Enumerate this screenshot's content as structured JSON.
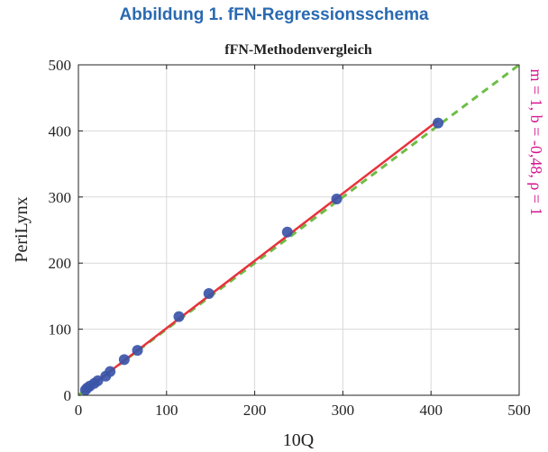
{
  "figure_title": "Abbildung 1. fFN-Regressionsschema",
  "colors": {
    "title": "#2a6ab1",
    "points": "#3b55a8",
    "fit_line": "#e8323c",
    "identity_line": "#6dbd45",
    "annotation": "#d6168f",
    "grid": "#d9d9d9",
    "axes": "#222222"
  },
  "chart_data": {
    "type": "scatter",
    "title": "fFN-Methodenvergleich",
    "xlabel": "10Q",
    "ylabel": "PeriLynx",
    "xlim": [
      0,
      500
    ],
    "ylim": [
      0,
      500
    ],
    "xticks": [
      0,
      100,
      200,
      300,
      400,
      500
    ],
    "yticks": [
      0,
      100,
      200,
      300,
      400,
      500
    ],
    "grid": true,
    "annotation": "m = 1, b = -0,48, ρ = 1",
    "fit": {
      "slope": 1.02,
      "intercept": -0.48,
      "x_range": [
        5,
        408
      ]
    },
    "identity_line": {
      "slope": 1,
      "intercept": 0,
      "x_range": [
        0,
        500
      ],
      "style": "dashed"
    },
    "points": [
      {
        "x": 8,
        "y": 8
      },
      {
        "x": 10,
        "y": 11
      },
      {
        "x": 13,
        "y": 14
      },
      {
        "x": 18,
        "y": 18
      },
      {
        "x": 22,
        "y": 22
      },
      {
        "x": 31,
        "y": 29
      },
      {
        "x": 36,
        "y": 36
      },
      {
        "x": 52,
        "y": 54
      },
      {
        "x": 67,
        "y": 68
      },
      {
        "x": 114,
        "y": 119
      },
      {
        "x": 148,
        "y": 154
      },
      {
        "x": 237,
        "y": 247
      },
      {
        "x": 293,
        "y": 297
      },
      {
        "x": 408,
        "y": 412
      }
    ]
  }
}
